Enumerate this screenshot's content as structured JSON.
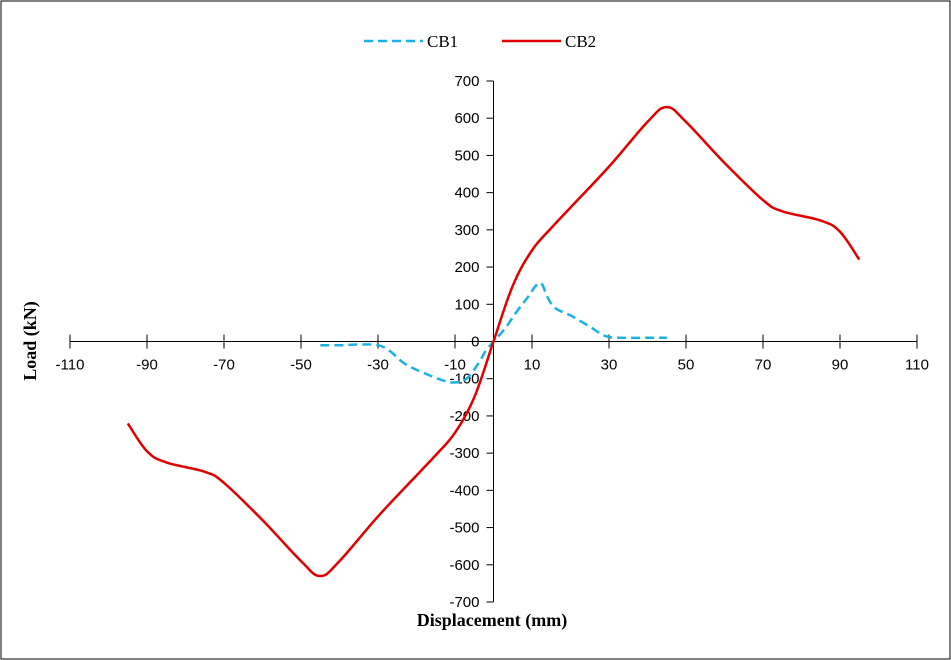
{
  "chart_data": {
    "type": "line",
    "title": "",
    "xlabel": "Displacement (mm)",
    "ylabel": "Load (kN)",
    "xlim": [
      -110,
      110
    ],
    "ylim": [
      -700,
      700
    ],
    "x_ticks": [
      -110,
      -90,
      -70,
      -50,
      -30,
      -10,
      10,
      30,
      50,
      70,
      90,
      110
    ],
    "y_ticks": [
      -700,
      -600,
      -500,
      -400,
      -300,
      -200,
      -100,
      0,
      100,
      200,
      300,
      400,
      500,
      600,
      700
    ],
    "grid": false,
    "legend_position": "top-center",
    "series": [
      {
        "name": "CB1",
        "color": "#1ab2e0",
        "dash": "dashed",
        "points": [
          [
            -45,
            -10
          ],
          [
            -40,
            -10
          ],
          [
            -35,
            -8
          ],
          [
            -30,
            -10
          ],
          [
            -27,
            -25
          ],
          [
            -23,
            -60
          ],
          [
            -18,
            -85
          ],
          [
            -13,
            -105
          ],
          [
            -10,
            -110
          ],
          [
            -7,
            -100
          ],
          [
            -4,
            -60
          ],
          [
            -2,
            -25
          ],
          [
            0,
            0
          ],
          [
            3,
            35
          ],
          [
            6,
            80
          ],
          [
            9,
            120
          ],
          [
            11,
            150
          ],
          [
            12.5,
            155
          ],
          [
            14,
            120
          ],
          [
            16,
            90
          ],
          [
            20,
            70
          ],
          [
            25,
            40
          ],
          [
            29,
            15
          ],
          [
            33,
            10
          ],
          [
            40,
            10
          ],
          [
            45,
            10
          ]
        ]
      },
      {
        "name": "CB2",
        "color": "#e00000",
        "dash": "solid",
        "points": [
          [
            -95,
            -220
          ],
          [
            -90,
            -295
          ],
          [
            -85,
            -325
          ],
          [
            -75,
            -350
          ],
          [
            -70,
            -380
          ],
          [
            -60,
            -480
          ],
          [
            -50,
            -590
          ],
          [
            -45,
            -630
          ],
          [
            -40,
            -590
          ],
          [
            -30,
            -470
          ],
          [
            -20,
            -360
          ],
          [
            -15,
            -305
          ],
          [
            -10,
            -245
          ],
          [
            -5,
            -150
          ],
          [
            0,
            0
          ],
          [
            5,
            150
          ],
          [
            10,
            245
          ],
          [
            15,
            305
          ],
          [
            20,
            360
          ],
          [
            30,
            470
          ],
          [
            40,
            590
          ],
          [
            45,
            630
          ],
          [
            50,
            590
          ],
          [
            60,
            480
          ],
          [
            70,
            380
          ],
          [
            75,
            350
          ],
          [
            85,
            325
          ],
          [
            90,
            295
          ],
          [
            95,
            220
          ]
        ]
      }
    ]
  }
}
